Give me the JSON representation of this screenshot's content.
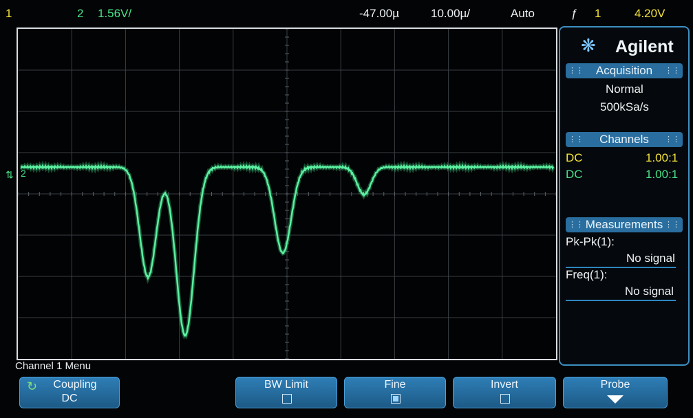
{
  "topbar": {
    "ch1_num": "1",
    "ch2_num": "2",
    "ch2_scale": "1.56V/",
    "h_position": "-47.00µ",
    "time_scale": "10.00µ/",
    "trigger_mode": "Auto",
    "trigger_icon": "ƒ",
    "trigger_source": "1",
    "trigger_level": "4.20V"
  },
  "screen": {
    "ch2_marker": "2"
  },
  "panel": {
    "brand": "Agilent",
    "logo_icon": "starburst-icon",
    "acquisition": {
      "title": "Acquisition",
      "mode": "Normal",
      "rate": "500kSa/s"
    },
    "channels": {
      "title": "Channels",
      "rows": [
        {
          "coupling": "DC",
          "ratio": "1.00:1"
        },
        {
          "coupling": "DC",
          "ratio": "1.00:1"
        }
      ]
    },
    "measurements": {
      "title": "Measurements",
      "items": [
        {
          "name": "Pk-Pk(1):",
          "value": "No signal"
        },
        {
          "name": "Freq(1):",
          "value": "No signal"
        }
      ]
    }
  },
  "softkeys": {
    "menu_title": "Channel 1 Menu",
    "coupling": {
      "label": "Coupling",
      "value": "DC"
    },
    "bw_limit": {
      "label": "BW Limit",
      "checked": false
    },
    "fine": {
      "label": "Fine",
      "checked": true
    },
    "invert": {
      "label": "Invert",
      "checked": false
    },
    "probe": {
      "label": "Probe"
    }
  },
  "colors": {
    "ch1": "#f4e23a",
    "ch2": "#49e38a",
    "trace": "#5cf0a0",
    "panel_accent": "#2a6e9f"
  }
}
